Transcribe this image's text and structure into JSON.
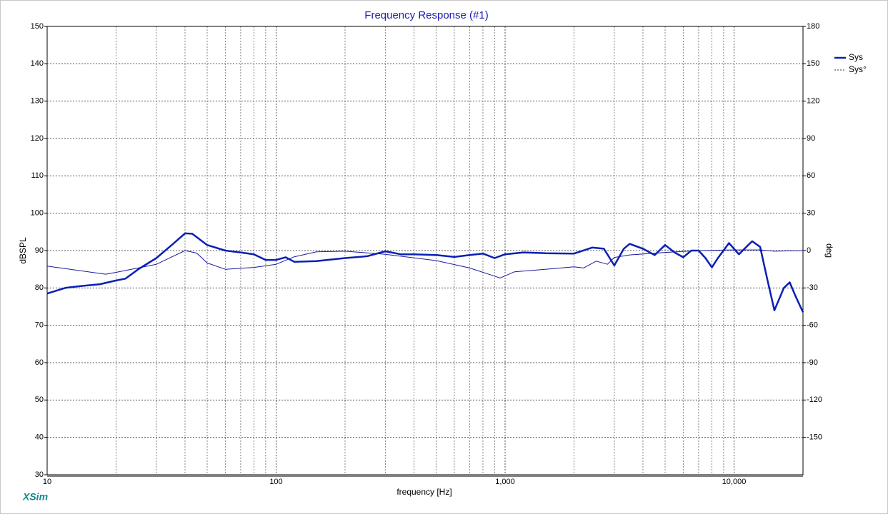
{
  "chart_data": {
    "type": "line",
    "title": "Frequency Response (#1)",
    "xlabel": "frequency [Hz]",
    "ylabel": "dBSPL",
    "y2label": "deg",
    "watermark": "XSim",
    "xscale": "log",
    "grid": true,
    "legend": "right",
    "xlim": [
      10,
      20000
    ],
    "xticks": [
      10,
      100,
      {
        "value": 1000,
        "label": "1,000"
      },
      {
        "value": 10000,
        "label": "10,000"
      }
    ],
    "ylim": [
      30,
      150
    ],
    "yticks": [
      30,
      40,
      50,
      60,
      70,
      80,
      90,
      100,
      110,
      120,
      130,
      140,
      150
    ],
    "y2lim": [
      -180,
      180
    ],
    "y2ticks": [
      -150,
      -120,
      -90,
      -60,
      -30,
      0,
      30,
      60,
      90,
      120,
      150,
      180
    ],
    "series": [
      {
        "name": "Sys",
        "color": "#0a1fb4",
        "axis": "y",
        "x": [
          10,
          12,
          14,
          17,
          20,
          22,
          25,
          30,
          35,
          40,
          43,
          50,
          60,
          70,
          80,
          90,
          100,
          110,
          120,
          150,
          200,
          250,
          300,
          350,
          400,
          500,
          600,
          700,
          800,
          900,
          1000,
          1200,
          1500,
          2000,
          2400,
          2700,
          3000,
          3300,
          3500,
          4000,
          4500,
          5000,
          5500,
          6000,
          6500,
          7000,
          7500,
          8000,
          8500,
          9500,
          10500,
          12000,
          13000,
          14000,
          15000,
          16500,
          17500,
          18500,
          20000
        ],
        "values": [
          78.5,
          80,
          80.5,
          81,
          82,
          82.5,
          85,
          88,
          91.5,
          94.6,
          94.5,
          91.5,
          90,
          89.5,
          89,
          87.5,
          87.5,
          88.2,
          87,
          87.2,
          88,
          88.5,
          89.8,
          89,
          89,
          88.8,
          88.3,
          88.8,
          89.2,
          88,
          89,
          89.5,
          89.3,
          89.2,
          90.8,
          90.5,
          86,
          90.5,
          91.8,
          90.5,
          88.8,
          91.5,
          89.5,
          88.2,
          90,
          90,
          88,
          85.5,
          88,
          92,
          89,
          92.5,
          91,
          82,
          74,
          80,
          81.5,
          78,
          73.5
        ]
      },
      {
        "name": "Sys°",
        "color": "#1a1aa0",
        "axis": "y2",
        "x": [
          10,
          18,
          20,
          30,
          40,
          45,
          50,
          60,
          80,
          100,
          120,
          150,
          200,
          300,
          500,
          700,
          900,
          950,
          1100,
          1500,
          2000,
          2200,
          2500,
          2800,
          3000,
          3500,
          5000,
          7000,
          10000,
          13000,
          15000,
          20000
        ],
        "values": [
          -12.5,
          -19,
          -17.5,
          -11,
          0,
          -2,
          -10,
          -15,
          -13.5,
          -11,
          -5,
          -1,
          -0.5,
          -3,
          -8,
          -14,
          -20.5,
          -22,
          -17,
          -15,
          -13,
          -14,
          -8.5,
          -11,
          -5.5,
          -3.5,
          -1.5,
          0,
          0.5,
          0.5,
          -0.5,
          0
        ]
      }
    ]
  }
}
